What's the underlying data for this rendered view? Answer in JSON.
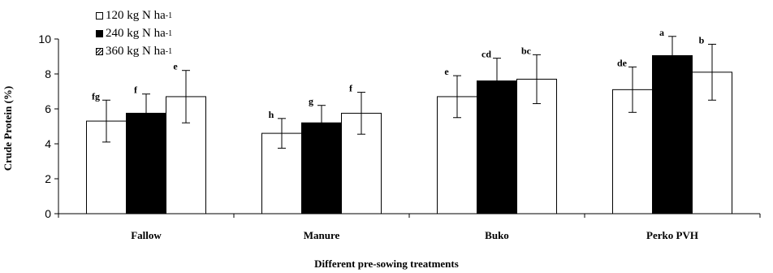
{
  "chart_data": {
    "type": "bar",
    "categories": [
      "Fallow",
      "Manure",
      "Buko",
      "Perko PVH"
    ],
    "series": [
      {
        "name": "120 kg N ha",
        "unit_sup": "-1",
        "color": "#ffffff",
        "pattern": "none",
        "values": [
          5.3,
          4.6,
          6.7,
          7.1
        ],
        "errors": [
          1.2,
          0.85,
          1.2,
          1.3
        ],
        "letters": [
          "fg",
          "h",
          "e",
          "de"
        ]
      },
      {
        "name": "240 kg N ha",
        "unit_sup": "-1",
        "color": "#000000",
        "pattern": "none",
        "values": [
          5.75,
          5.2,
          7.6,
          9.05
        ],
        "errors": [
          1.1,
          1.0,
          1.3,
          1.1
        ],
        "letters": [
          "f",
          "g",
          "cd",
          "a"
        ]
      },
      {
        "name": "360 kg N ha",
        "unit_sup": "-1",
        "color": "#ffffff",
        "pattern": "none",
        "values": [
          6.7,
          5.75,
          7.7,
          8.1
        ],
        "errors": [
          1.5,
          1.2,
          1.4,
          1.6
        ],
        "letters": [
          "e",
          "f",
          "bc",
          "b"
        ]
      }
    ],
    "xlabel": "Different pre-sowing treatments",
    "ylabel": "Crude Protein (%)",
    "ylim": [
      0,
      10
    ],
    "yticks": [
      0,
      2,
      4,
      6,
      8,
      10
    ],
    "grid": false,
    "legend_position": "top-left"
  }
}
